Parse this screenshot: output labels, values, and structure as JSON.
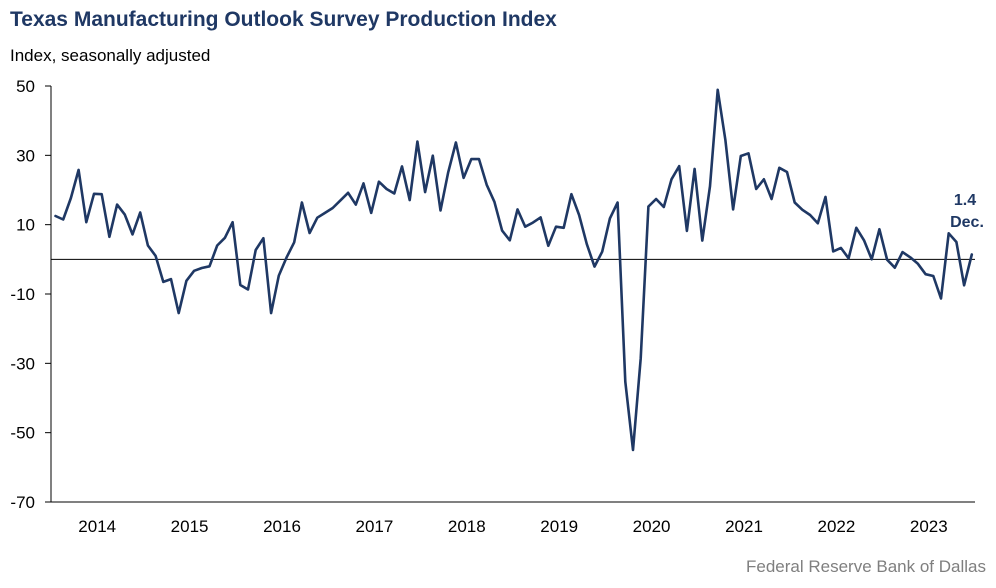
{
  "title": "Texas Manufacturing Outlook Survey Production Index",
  "subtitle": "Index, seasonally adjusted",
  "source": "Federal Reserve Bank of Dallas",
  "chart_data": {
    "type": "line",
    "title": "Texas Manufacturing Outlook Survey Production Index",
    "ylabel": "Index, seasonally adjusted",
    "xlabel": "",
    "ylim": [
      -70,
      50
    ],
    "yticks": [
      50,
      30,
      10,
      -10,
      -30,
      -50,
      -70
    ],
    "xticks": [
      "2014",
      "2015",
      "2016",
      "2017",
      "2018",
      "2019",
      "2020",
      "2021",
      "2022",
      "2023"
    ],
    "x_start": "2014-01",
    "x_end": "2023-12",
    "grid": false,
    "zero_line": true,
    "line_color": "#1f3864",
    "series": [
      {
        "name": "",
        "values": [
          12.5,
          11.5,
          17.7,
          25.8,
          10.7,
          18.9,
          18.8,
          6.5,
          15.8,
          12.9,
          7.2,
          13.5,
          4.0,
          1.0,
          -6.5,
          -5.7,
          -15.5,
          -6.2,
          -3.3,
          -2.5,
          -2.0,
          4.0,
          6.2,
          10.7,
          -7.4,
          -8.7,
          2.7,
          6.1,
          -15.5,
          -4.7,
          0.5,
          4.9,
          16.4,
          7.6,
          12.0,
          13.4,
          14.8,
          17.0,
          19.2,
          15.8,
          21.9,
          13.4,
          22.4,
          20.3,
          19.0,
          26.8,
          17.1,
          34.0,
          19.4,
          29.9,
          14.1,
          25.1,
          33.7,
          23.5,
          28.9,
          28.9,
          21.5,
          16.6,
          8.3,
          5.5,
          14.4,
          9.4,
          10.6,
          12.1,
          3.9,
          9.4,
          9.1,
          18.8,
          12.8,
          4.4,
          -2.1,
          2.2,
          11.8,
          16.4,
          -35.3,
          -55.0,
          -28.6,
          15.2,
          17.4,
          15.1,
          23.1,
          26.9,
          8.2,
          26.1,
          5.4,
          21.1,
          48.9,
          34.4,
          14.4,
          29.8,
          30.6,
          20.3,
          23.1,
          17.4,
          26.4,
          25.2,
          16.4,
          14.3,
          12.8,
          10.4,
          18.0,
          2.3,
          3.3,
          0.3,
          9.1,
          5.5,
          0.0,
          8.7,
          -0.1,
          -2.4,
          2.1,
          0.6,
          -1.3,
          -4.3,
          -4.8,
          -11.3,
          7.5,
          5.0,
          -7.5,
          1.4
        ]
      }
    ],
    "annotation": {
      "value_label": "1.4",
      "date_label": "Dec."
    }
  }
}
